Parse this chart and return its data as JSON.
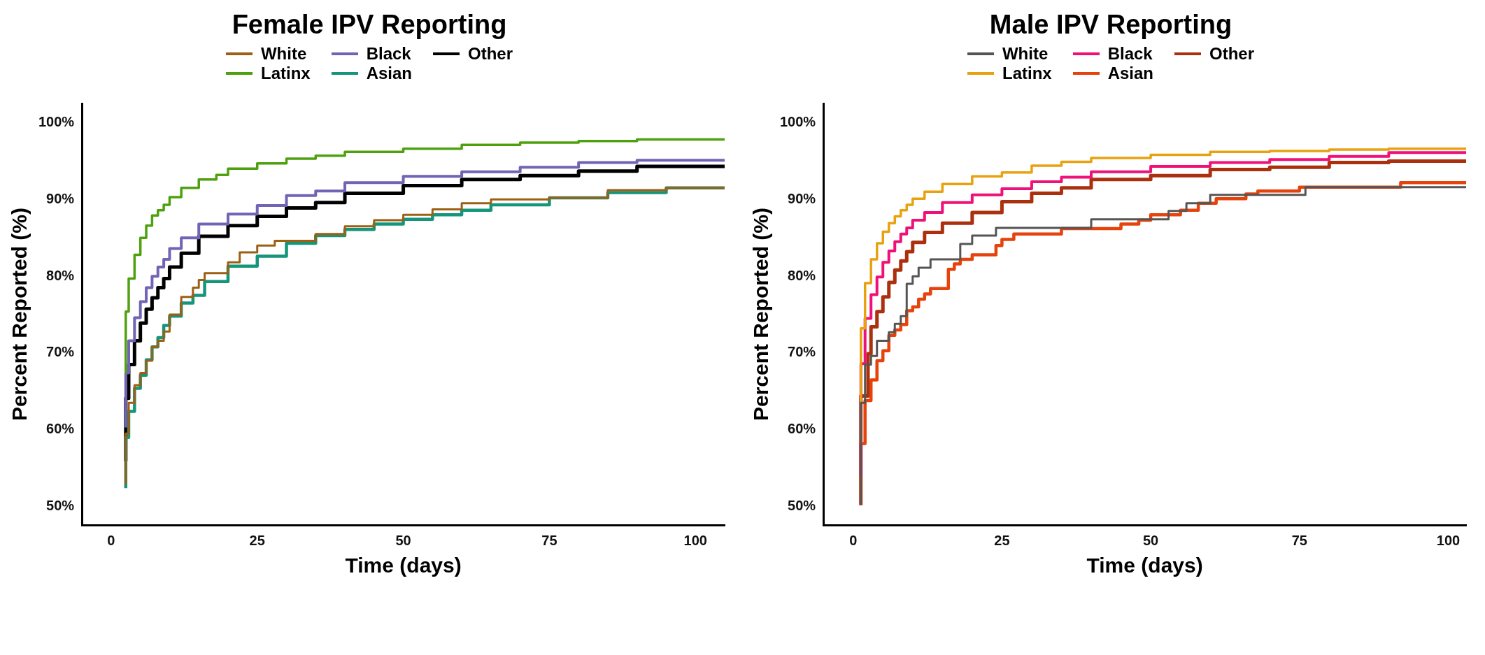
{
  "chart_data": [
    {
      "type": "step",
      "title": "Female IPV Reporting",
      "xlabel": "Time (days)",
      "ylabel": "Percent Reported (%)",
      "legend": "top",
      "grid": false,
      "xlim": [
        -5,
        105
      ],
      "xticks": [
        0,
        25,
        50,
        75,
        100
      ],
      "ylim": [
        47.6,
        102.5
      ],
      "yticks": [
        {
          "value": 50,
          "label": "50%"
        },
        {
          "value": 60,
          "label": "60%"
        },
        {
          "value": 70,
          "label": "70%"
        },
        {
          "value": 80,
          "label": "80%"
        },
        {
          "value": 90,
          "label": "90%"
        },
        {
          "value": 100,
          "label": "100%"
        }
      ],
      "series": [
        {
          "name": "White",
          "color": "#9c5f14",
          "x": [
            2.5,
            3,
            4,
            5,
            6,
            7,
            8,
            9,
            10,
            12,
            14,
            15,
            16,
            20,
            22,
            25,
            28,
            35,
            40,
            45,
            50,
            55,
            60,
            65,
            75,
            85,
            95,
            105
          ],
          "values": [
            52.9,
            59.5,
            63.5,
            65.8,
            67.4,
            69,
            70.8,
            71.6,
            72.8,
            75,
            77.3,
            78.5,
            79.5,
            80.4,
            81.8,
            83.1,
            84,
            84.6,
            85.5,
            86.5,
            87.3,
            88,
            88.7,
            89.5,
            90,
            90.2,
            91.2,
            91.5
          ]
        },
        {
          "name": "Latinx",
          "color": "#4ea10e",
          "x": [
            2.5,
            3,
            4,
            5,
            6,
            7,
            8,
            9,
            10,
            12,
            15,
            18,
            20,
            25,
            30,
            35,
            40,
            50,
            60,
            70,
            80,
            90,
            105
          ],
          "values": [
            67.3,
            75.4,
            79.7,
            82.8,
            85,
            86.6,
            87.9,
            88.6,
            89.3,
            90.3,
            91.5,
            92.6,
            93.2,
            94,
            94.7,
            95.3,
            95.7,
            96.2,
            96.6,
            97.1,
            97.4,
            97.6,
            97.8
          ]
        },
        {
          "name": "Black",
          "color": "#7164b5",
          "x": [
            2.5,
            3,
            4,
            5,
            6,
            7,
            8,
            9,
            10,
            12,
            15,
            20,
            25,
            30,
            35,
            40,
            50,
            60,
            70,
            80,
            90,
            105
          ],
          "values": [
            60.3,
            67.4,
            71.6,
            74.6,
            76.7,
            78.5,
            80,
            81.2,
            82.2,
            83.6,
            85,
            86.8,
            88.1,
            89.2,
            90.5,
            91.1,
            92.2,
            93,
            93.6,
            94.2,
            94.8,
            95.1
          ]
        },
        {
          "name": "Asian",
          "color": "#15957a",
          "x": [
            2.5,
            3,
            4,
            5,
            6,
            7,
            8,
            9,
            10,
            12,
            14,
            16,
            20,
            25,
            30,
            35,
            40,
            45,
            50,
            55,
            60,
            65,
            75,
            85,
            95,
            105
          ],
          "values": [
            52.4,
            59,
            62.4,
            65.4,
            67.1,
            69.1,
            70.8,
            72,
            73.6,
            74.8,
            76.5,
            77.5,
            79.3,
            81.3,
            82.6,
            84.3,
            85.3,
            86.1,
            86.8,
            87.4,
            88,
            88.6,
            89.3,
            90.2,
            90.9,
            91.5
          ]
        },
        {
          "name": "Other",
          "color": "#000000",
          "x": [
            2.5,
            3,
            4,
            5,
            6,
            7,
            8,
            9,
            10,
            12,
            15,
            20,
            25,
            30,
            35,
            40,
            50,
            60,
            70,
            80,
            90,
            105
          ],
          "values": [
            55.9,
            64.1,
            68.5,
            71.6,
            73.9,
            75.7,
            77.2,
            78.5,
            79.7,
            81.2,
            83,
            85.2,
            86.6,
            87.8,
            88.9,
            89.6,
            90.8,
            91.8,
            92.6,
            93.1,
            93.7,
            94.3
          ]
        }
      ]
    },
    {
      "type": "step",
      "title": "Male IPV Reporting",
      "xlabel": "Time (days)",
      "ylabel": "Percent Reported (%)",
      "legend": "top",
      "grid": false,
      "xlim": [
        -5,
        103
      ],
      "xticks": [
        0,
        25,
        50,
        75,
        100
      ],
      "ylim": [
        47.6,
        102.5
      ],
      "yticks": [
        {
          "value": 50,
          "label": "50%"
        },
        {
          "value": 60,
          "label": "60%"
        },
        {
          "value": 70,
          "label": "70%"
        },
        {
          "value": 80,
          "label": "80%"
        },
        {
          "value": 90,
          "label": "90%"
        },
        {
          "value": 100,
          "label": "100%"
        }
      ],
      "series": [
        {
          "name": "White",
          "color": "#555555",
          "x": [
            1.3,
            2,
            3,
            4,
            6,
            7,
            8,
            9,
            10,
            11,
            13,
            18,
            20,
            24,
            40,
            53,
            56,
            60,
            76,
            96,
            103
          ],
          "values": [
            50.2,
            63.5,
            68.5,
            69.6,
            71.6,
            72.7,
            73.8,
            74.8,
            79,
            80,
            81.1,
            82.2,
            84.2,
            85.3,
            86.3,
            87.4,
            88.5,
            89.5,
            90.6,
            91.6,
            91.6
          ]
        },
        {
          "name": "Latinx",
          "color": "#e8a10f",
          "x": [
            1.3,
            2,
            3,
            4,
            5,
            6,
            7,
            8,
            9,
            10,
            12,
            15,
            20,
            25,
            30,
            35,
            40,
            50,
            60,
            70,
            80,
            90,
            103
          ],
          "values": [
            58.2,
            73.2,
            79.1,
            82.2,
            84.3,
            85.8,
            86.9,
            87.8,
            88.6,
            89.3,
            90.1,
            91,
            92,
            93,
            93.5,
            94.4,
            94.9,
            95.4,
            95.8,
            96.2,
            96.3,
            96.5,
            96.6
          ]
        },
        {
          "name": "Black",
          "color": "#ef1177",
          "x": [
            1.3,
            2,
            3,
            4,
            5,
            6,
            7,
            8,
            9,
            10,
            12,
            15,
            20,
            25,
            30,
            35,
            40,
            50,
            60,
            70,
            80,
            90,
            103
          ],
          "values": [
            53.9,
            68.6,
            74.5,
            77.6,
            79.9,
            81.8,
            83.3,
            84.5,
            85.5,
            86.3,
            87.3,
            88.3,
            89.6,
            90.6,
            91.4,
            92.3,
            92.9,
            93.6,
            94.3,
            94.8,
            95.2,
            95.6,
            96.1
          ]
        },
        {
          "name": "Asian",
          "color": "#e5420c",
          "x": [
            1.3,
            2,
            3,
            4,
            5,
            6,
            7,
            8,
            9,
            10,
            11,
            12,
            13,
            16,
            17,
            18,
            20,
            24,
            25,
            27,
            35,
            45,
            48,
            50,
            55,
            58,
            61,
            66,
            68,
            75,
            92,
            96,
            103
          ],
          "values": [
            50.2,
            58.2,
            63.8,
            66.5,
            69,
            70.3,
            72.3,
            73,
            73.7,
            75.5,
            76,
            77,
            77.7,
            78.4,
            80.9,
            81.6,
            82.2,
            82.8,
            84,
            84.8,
            85.5,
            86.2,
            86.8,
            87.3,
            88,
            88.6,
            89.5,
            90.1,
            90.7,
            91.1,
            91.6,
            92.2,
            92.2
          ]
        },
        {
          "name": "Other",
          "color": "#ab300e",
          "x": [
            1.3,
            2.5,
            3,
            4,
            5,
            6,
            7,
            8,
            9,
            10,
            12,
            15,
            20,
            25,
            30,
            35,
            40,
            50,
            60,
            70,
            80,
            90,
            103
          ],
          "values": [
            50.2,
            64.4,
            69.9,
            73.4,
            75.4,
            77.3,
            79.2,
            80.8,
            82,
            83.2,
            84.4,
            85.7,
            86.9,
            88.3,
            89.7,
            90.8,
            91.5,
            92.6,
            93.1,
            93.9,
            94.2,
            94.8,
            95
          ]
        }
      ]
    }
  ]
}
